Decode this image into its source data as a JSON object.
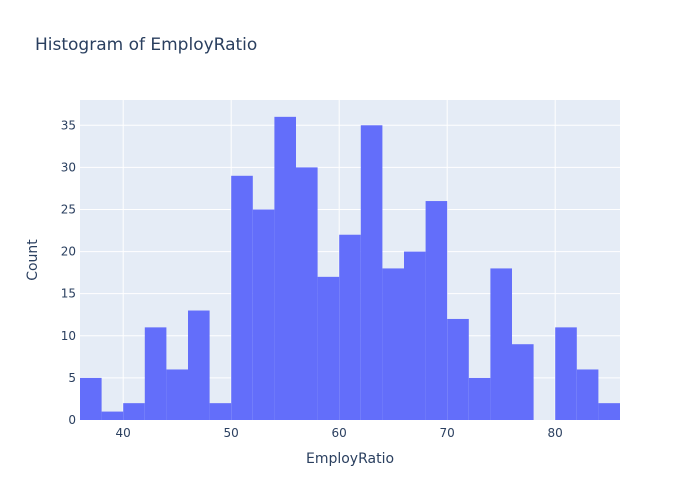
{
  "chart_data": {
    "type": "bar",
    "title": "Histogram of EmployRatio",
    "xlabel": "EmployRatio",
    "ylabel": "Count",
    "xlim": [
      36,
      86
    ],
    "ylim": [
      0,
      38
    ],
    "bin_width": 2,
    "bins": [
      {
        "start": 36,
        "end": 38,
        "count": 5
      },
      {
        "start": 38,
        "end": 40,
        "count": 1
      },
      {
        "start": 40,
        "end": 42,
        "count": 2
      },
      {
        "start": 42,
        "end": 44,
        "count": 11
      },
      {
        "start": 44,
        "end": 46,
        "count": 6
      },
      {
        "start": 46,
        "end": 48,
        "count": 13
      },
      {
        "start": 48,
        "end": 50,
        "count": 2
      },
      {
        "start": 50,
        "end": 52,
        "count": 29
      },
      {
        "start": 52,
        "end": 54,
        "count": 25
      },
      {
        "start": 54,
        "end": 56,
        "count": 36
      },
      {
        "start": 56,
        "end": 58,
        "count": 30
      },
      {
        "start": 58,
        "end": 60,
        "count": 17
      },
      {
        "start": 60,
        "end": 62,
        "count": 22
      },
      {
        "start": 62,
        "end": 64,
        "count": 35
      },
      {
        "start": 64,
        "end": 66,
        "count": 18
      },
      {
        "start": 66,
        "end": 68,
        "count": 20
      },
      {
        "start": 68,
        "end": 70,
        "count": 26
      },
      {
        "start": 70,
        "end": 72,
        "count": 12
      },
      {
        "start": 72,
        "end": 74,
        "count": 5
      },
      {
        "start": 74,
        "end": 76,
        "count": 18
      },
      {
        "start": 76,
        "end": 78,
        "count": 9
      },
      {
        "start": 78,
        "end": 80,
        "count": 0
      },
      {
        "start": 80,
        "end": 82,
        "count": 11
      },
      {
        "start": 82,
        "end": 84,
        "count": 6
      },
      {
        "start": 84,
        "end": 86,
        "count": 2
      }
    ],
    "x_ticks": [
      40,
      50,
      60,
      70,
      80
    ],
    "y_ticks": [
      0,
      5,
      10,
      15,
      20,
      25,
      30,
      35
    ],
    "grid": true,
    "colors": {
      "bar": "#636efa",
      "plot_bg": "#e5ecf6",
      "grid": "#ffffff",
      "text": "#2a3f5f"
    }
  }
}
